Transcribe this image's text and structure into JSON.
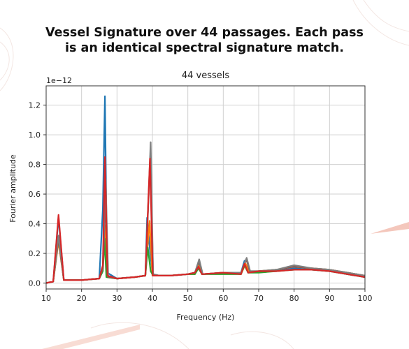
{
  "headline": {
    "line1": "Vessel Signature over 44 passages. Each pass",
    "line2": "is an identical spectral signature match."
  },
  "chart_data": {
    "type": "line",
    "title": "44 vessels",
    "xlabel": "Frequency (Hz)",
    "ylabel": "Fourier amplitude",
    "y_scale_label": "1e−12",
    "xlim": [
      10,
      100
    ],
    "ylim": [
      -0.04,
      1.33
    ],
    "xticks": [
      "10",
      "20",
      "30",
      "40",
      "50",
      "60",
      "70",
      "80",
      "90",
      "100"
    ],
    "yticks": [
      "0.0",
      "0.2",
      "0.4",
      "0.6",
      "0.8",
      "1.0",
      "1.2"
    ],
    "ytick_values": [
      0.0,
      0.2,
      0.4,
      0.6,
      0.8,
      1.0,
      1.2
    ],
    "grid": true,
    "series": [
      {
        "color": "#1f77b4",
        "x": [
          10,
          12,
          13.5,
          15,
          20,
          25,
          26,
          26.6,
          27.2,
          30,
          35,
          38,
          38.5,
          39.3,
          40.1,
          42,
          45,
          50,
          52,
          53,
          54,
          60,
          65,
          66,
          67,
          70,
          75,
          80,
          85,
          90,
          95,
          100
        ],
        "y": [
          0.0,
          0.01,
          0.44,
          0.02,
          0.02,
          0.03,
          0.5,
          1.26,
          0.07,
          0.03,
          0.04,
          0.05,
          0.44,
          0.22,
          0.05,
          0.05,
          0.05,
          0.06,
          0.07,
          0.13,
          0.06,
          0.07,
          0.07,
          0.15,
          0.07,
          0.08,
          0.08,
          0.1,
          0.09,
          0.08,
          0.06,
          0.04
        ]
      },
      {
        "color": "#ff7f0e",
        "x": [
          10,
          12,
          13.5,
          15,
          20,
          25,
          26,
          26.7,
          27.2,
          30,
          35,
          38,
          39.2,
          40,
          42,
          45,
          50,
          52,
          53,
          54,
          60,
          65,
          66.3,
          67.5,
          70,
          75,
          80,
          85,
          90,
          95,
          100
        ],
        "y": [
          0.0,
          0.01,
          0.28,
          0.02,
          0.02,
          0.03,
          0.1,
          0.39,
          0.04,
          0.03,
          0.04,
          0.05,
          0.42,
          0.05,
          0.05,
          0.05,
          0.06,
          0.06,
          0.12,
          0.06,
          0.07,
          0.06,
          0.13,
          0.07,
          0.08,
          0.09,
          0.11,
          0.1,
          0.09,
          0.07,
          0.05
        ]
      },
      {
        "color": "#2ca02c",
        "x": [
          10,
          12,
          13.5,
          15,
          20,
          25,
          26,
          26.5,
          27,
          30,
          35,
          38,
          38.7,
          39.5,
          40.2,
          42,
          45,
          50,
          52,
          53,
          54,
          60,
          65,
          66,
          67,
          70,
          75,
          80,
          85,
          90,
          95,
          100
        ],
        "y": [
          0.0,
          0.01,
          0.3,
          0.02,
          0.02,
          0.03,
          0.08,
          0.3,
          0.04,
          0.03,
          0.04,
          0.05,
          0.24,
          0.08,
          0.05,
          0.05,
          0.05,
          0.06,
          0.06,
          0.1,
          0.06,
          0.06,
          0.06,
          0.12,
          0.07,
          0.07,
          0.08,
          0.09,
          0.09,
          0.08,
          0.06,
          0.04
        ]
      },
      {
        "color": "#8c564b",
        "x": [
          10,
          12,
          13.5,
          15,
          20,
          25,
          26,
          26.8,
          27.5,
          30,
          35,
          38,
          39.4,
          40.2,
          42,
          45,
          50,
          52,
          53.2,
          54.2,
          60,
          65,
          66.5,
          67.5,
          70,
          75,
          80,
          85,
          90,
          95,
          100
        ],
        "y": [
          0.0,
          0.01,
          0.3,
          0.02,
          0.02,
          0.03,
          0.1,
          0.55,
          0.04,
          0.03,
          0.04,
          0.05,
          0.86,
          0.06,
          0.05,
          0.05,
          0.06,
          0.07,
          0.15,
          0.06,
          0.07,
          0.07,
          0.16,
          0.08,
          0.08,
          0.09,
          0.11,
          0.1,
          0.09,
          0.07,
          0.05
        ]
      },
      {
        "color": "#7f7f7f",
        "x": [
          10,
          12,
          13.5,
          15,
          20,
          25,
          26,
          26.8,
          27.5,
          30,
          35,
          38,
          39.5,
          40.2,
          42,
          45,
          50,
          52,
          53.2,
          54.2,
          60,
          65,
          66.6,
          67.6,
          70,
          75,
          80,
          85,
          90,
          95,
          100
        ],
        "y": [
          0.0,
          0.01,
          0.32,
          0.02,
          0.02,
          0.03,
          0.12,
          0.7,
          0.05,
          0.03,
          0.04,
          0.05,
          0.95,
          0.06,
          0.05,
          0.05,
          0.06,
          0.07,
          0.16,
          0.06,
          0.07,
          0.07,
          0.17,
          0.08,
          0.08,
          0.09,
          0.12,
          0.1,
          0.09,
          0.07,
          0.05
        ]
      },
      {
        "color": "#d62728",
        "x": [
          10,
          12,
          13.5,
          15,
          18,
          20,
          25,
          26,
          26.6,
          27.3,
          30,
          35,
          38,
          39.3,
          40.1,
          42,
          45,
          50,
          52,
          53,
          54,
          60,
          65,
          66,
          67,
          70,
          75,
          80,
          85,
          90,
          95,
          100
        ],
        "y": [
          0.0,
          0.01,
          0.46,
          0.02,
          0.02,
          0.02,
          0.03,
          0.12,
          0.85,
          0.05,
          0.03,
          0.04,
          0.05,
          0.84,
          0.05,
          0.05,
          0.05,
          0.06,
          0.07,
          0.11,
          0.06,
          0.07,
          0.06,
          0.13,
          0.07,
          0.08,
          0.08,
          0.09,
          0.09,
          0.08,
          0.06,
          0.04
        ]
      }
    ]
  }
}
